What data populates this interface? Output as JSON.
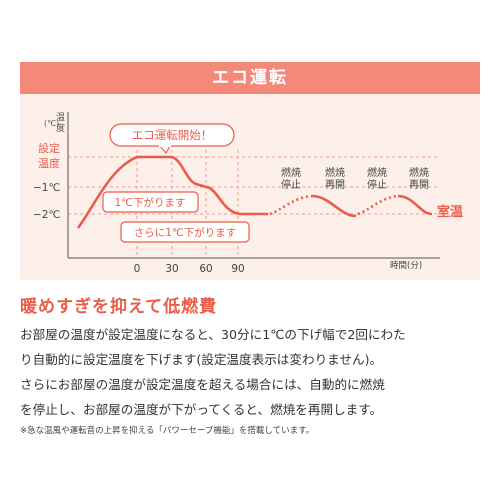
{
  "header": {
    "title": "エコ運転"
  },
  "diagram": {
    "yaxis_unit": "(℃)",
    "yaxis_label_1": "温",
    "yaxis_label_2": "度",
    "level_setpoint_1": "設定",
    "level_setpoint_2": "温度",
    "level_minus1": "−1℃",
    "level_minus2": "−2℃",
    "x_ticks": [
      "0",
      "30",
      "60",
      "90"
    ],
    "xaxis_label": "時間(分)",
    "callout_start": "エコ運転開始！",
    "callout_step1": "1℃下がります",
    "callout_step2": "さらに1℃下がります",
    "stop_1a": "燃焼",
    "stop_1b": "停止",
    "resume_1a": "燃焼",
    "resume_1b": "再開",
    "stop_2a": "燃焼",
    "stop_2b": "停止",
    "resume_2a": "燃焼",
    "resume_2b": "再開",
    "room_label": "室温",
    "colors": {
      "line": "#ea5d4b",
      "panel": "#fdf0ea",
      "header": "#f4897a",
      "dash": "#e7a092"
    }
  },
  "headline": "暖めすぎを抑えて低燃費",
  "body": [
    "お部屋の温度が設定温度になると、30分に1℃の下げ幅で2回にわた",
    "り自動的に設定温度を下げます(設定温度表示は変わりません)。",
    "さらにお部屋の温度が設定温度を超える場合には、自動的に燃焼",
    "を停止し、お部屋の温度が下がってくると、燃焼を再開します。"
  ],
  "footnote": "※急な温風や運転音の上昇を抑える「パワーセーブ機能」を搭載しています。"
}
